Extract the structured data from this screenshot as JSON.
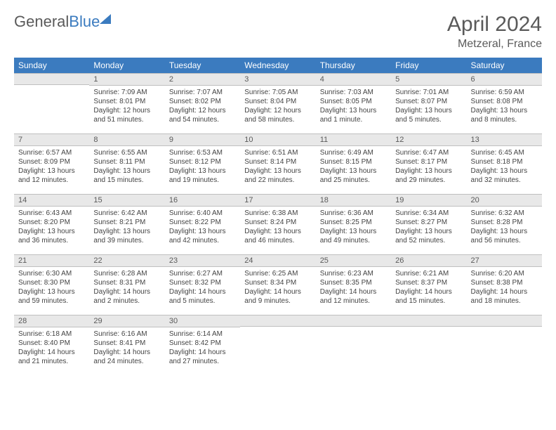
{
  "brand": {
    "part1": "General",
    "part2": "Blue"
  },
  "title": "April 2024",
  "location": "Metzeral, France",
  "colors": {
    "header_bg": "#3b7bbf",
    "header_fg": "#ffffff",
    "daybar_bg": "#e8e8e8",
    "daybar_border": "#bfbfbf",
    "text": "#444444",
    "title_color": "#5a5a5a"
  },
  "layout": {
    "columns": 7,
    "rows": 5,
    "first_weekday_index": 1
  },
  "weekdays": [
    "Sunday",
    "Monday",
    "Tuesday",
    "Wednesday",
    "Thursday",
    "Friday",
    "Saturday"
  ],
  "days": [
    {
      "n": 1,
      "sr": "7:09 AM",
      "ss": "8:01 PM",
      "dl": "12 hours and 51 minutes."
    },
    {
      "n": 2,
      "sr": "7:07 AM",
      "ss": "8:02 PM",
      "dl": "12 hours and 54 minutes."
    },
    {
      "n": 3,
      "sr": "7:05 AM",
      "ss": "8:04 PM",
      "dl": "12 hours and 58 minutes."
    },
    {
      "n": 4,
      "sr": "7:03 AM",
      "ss": "8:05 PM",
      "dl": "13 hours and 1 minute."
    },
    {
      "n": 5,
      "sr": "7:01 AM",
      "ss": "8:07 PM",
      "dl": "13 hours and 5 minutes."
    },
    {
      "n": 6,
      "sr": "6:59 AM",
      "ss": "8:08 PM",
      "dl": "13 hours and 8 minutes."
    },
    {
      "n": 7,
      "sr": "6:57 AM",
      "ss": "8:09 PM",
      "dl": "13 hours and 12 minutes."
    },
    {
      "n": 8,
      "sr": "6:55 AM",
      "ss": "8:11 PM",
      "dl": "13 hours and 15 minutes."
    },
    {
      "n": 9,
      "sr": "6:53 AM",
      "ss": "8:12 PM",
      "dl": "13 hours and 19 minutes."
    },
    {
      "n": 10,
      "sr": "6:51 AM",
      "ss": "8:14 PM",
      "dl": "13 hours and 22 minutes."
    },
    {
      "n": 11,
      "sr": "6:49 AM",
      "ss": "8:15 PM",
      "dl": "13 hours and 25 minutes."
    },
    {
      "n": 12,
      "sr": "6:47 AM",
      "ss": "8:17 PM",
      "dl": "13 hours and 29 minutes."
    },
    {
      "n": 13,
      "sr": "6:45 AM",
      "ss": "8:18 PM",
      "dl": "13 hours and 32 minutes."
    },
    {
      "n": 14,
      "sr": "6:43 AM",
      "ss": "8:20 PM",
      "dl": "13 hours and 36 minutes."
    },
    {
      "n": 15,
      "sr": "6:42 AM",
      "ss": "8:21 PM",
      "dl": "13 hours and 39 minutes."
    },
    {
      "n": 16,
      "sr": "6:40 AM",
      "ss": "8:22 PM",
      "dl": "13 hours and 42 minutes."
    },
    {
      "n": 17,
      "sr": "6:38 AM",
      "ss": "8:24 PM",
      "dl": "13 hours and 46 minutes."
    },
    {
      "n": 18,
      "sr": "6:36 AM",
      "ss": "8:25 PM",
      "dl": "13 hours and 49 minutes."
    },
    {
      "n": 19,
      "sr": "6:34 AM",
      "ss": "8:27 PM",
      "dl": "13 hours and 52 minutes."
    },
    {
      "n": 20,
      "sr": "6:32 AM",
      "ss": "8:28 PM",
      "dl": "13 hours and 56 minutes."
    },
    {
      "n": 21,
      "sr": "6:30 AM",
      "ss": "8:30 PM",
      "dl": "13 hours and 59 minutes."
    },
    {
      "n": 22,
      "sr": "6:28 AM",
      "ss": "8:31 PM",
      "dl": "14 hours and 2 minutes."
    },
    {
      "n": 23,
      "sr": "6:27 AM",
      "ss": "8:32 PM",
      "dl": "14 hours and 5 minutes."
    },
    {
      "n": 24,
      "sr": "6:25 AM",
      "ss": "8:34 PM",
      "dl": "14 hours and 9 minutes."
    },
    {
      "n": 25,
      "sr": "6:23 AM",
      "ss": "8:35 PM",
      "dl": "14 hours and 12 minutes."
    },
    {
      "n": 26,
      "sr": "6:21 AM",
      "ss": "8:37 PM",
      "dl": "14 hours and 15 minutes."
    },
    {
      "n": 27,
      "sr": "6:20 AM",
      "ss": "8:38 PM",
      "dl": "14 hours and 18 minutes."
    },
    {
      "n": 28,
      "sr": "6:18 AM",
      "ss": "8:40 PM",
      "dl": "14 hours and 21 minutes."
    },
    {
      "n": 29,
      "sr": "6:16 AM",
      "ss": "8:41 PM",
      "dl": "14 hours and 24 minutes."
    },
    {
      "n": 30,
      "sr": "6:14 AM",
      "ss": "8:42 PM",
      "dl": "14 hours and 27 minutes."
    }
  ],
  "labels": {
    "sunrise": "Sunrise:",
    "sunset": "Sunset:",
    "daylight": "Daylight:"
  }
}
